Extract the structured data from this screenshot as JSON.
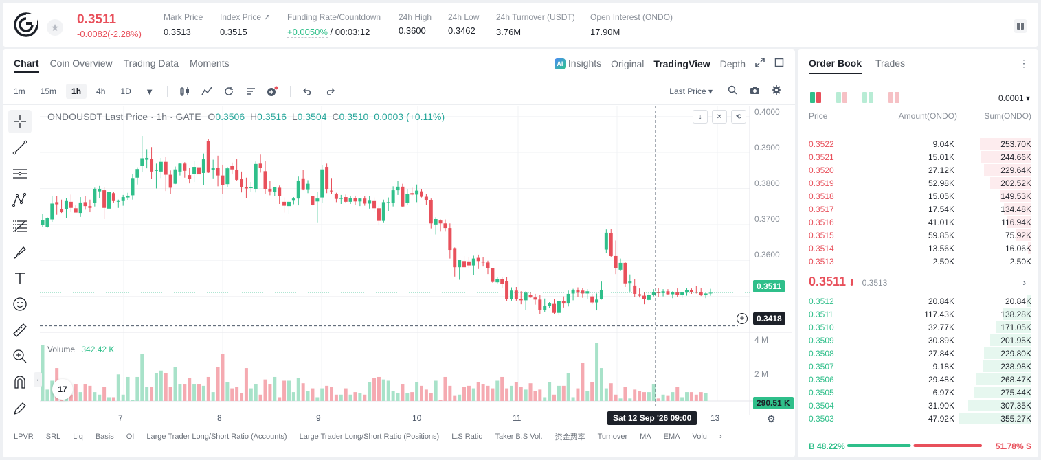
{
  "header": {
    "last_price": "0.3511",
    "price_change": "-0.0082(-2.28%)",
    "stats": [
      {
        "label": "Mark Price",
        "value": "0.3513"
      },
      {
        "label": "Index Price ↗",
        "value": "0.3515"
      },
      {
        "label": "Funding Rate/Countdown",
        "value": "+0.0050%",
        "value2": " / 00:03:12"
      },
      {
        "label": "24h High",
        "value": "0.3600"
      },
      {
        "label": "24h Low",
        "value": "0.3462"
      },
      {
        "label": "24h Turnover (USDT)",
        "value": "3.76M"
      },
      {
        "label": "Open Interest (ONDO)",
        "value": "17.90M"
      }
    ]
  },
  "chart_tabs": [
    "Chart",
    "Coin Overview",
    "Trading Data",
    "Moments"
  ],
  "view_tabs": {
    "insights": "Insights",
    "original": "Original",
    "tradingview": "TradingView",
    "depth": "Depth",
    "ai_badge": "AI"
  },
  "timeframes": [
    "1m",
    "15m",
    "1h",
    "4h",
    "1D"
  ],
  "price_source": "Last Price ▾",
  "legend": {
    "symbol": "ONDOUSDT Last Price · 1h · GATE",
    "o_label": "O",
    "o": "0.3506",
    "h_label": "H",
    "h": "0.3516",
    "l_label": "L",
    "l": "0.3504",
    "c_label": "C",
    "c": "0.3510",
    "change": "0.0003 (+0.11%)"
  },
  "volume_legend": {
    "label": "Volume",
    "value": "342.42 K"
  },
  "y_ticks": [
    "0.4000",
    "0.3900",
    "0.3800",
    "0.3700",
    "0.3600"
  ],
  "vol_ticks": [
    "4 M",
    "2 M"
  ],
  "current_price_tag": "0.3511",
  "crosshair_price_tag": "0.3418",
  "volume_tag": "290.51 K",
  "time_tag": "Sat 12 Sep '26   09:00",
  "x_ticks": [
    "7",
    "8",
    "9",
    "10",
    "11",
    "13"
  ],
  "tv_logo": "17",
  "indicators": [
    "LPVR",
    "SRL",
    "Liq",
    "Basis",
    "OI",
    "Large Trader Long/Short Ratio (Accounts)",
    "Large Trader Long/Short Ratio (Positions)",
    "L.S Ratio",
    "Taker B.S Vol.",
    "资金费率",
    "Turnover",
    "MA",
    "EMA",
    "Volu"
  ],
  "colors": {
    "up": "#2fbf8a",
    "down": "#e8505b"
  },
  "chart_data": {
    "type": "candlestick",
    "x_labels": [
      "7",
      "8",
      "9",
      "10",
      "11",
      "12",
      "13"
    ],
    "ylim": [
      0.3418,
      0.4
    ],
    "last_price": 0.3511,
    "candles": [
      [
        0.3698,
        0.3729,
        0.3693,
        0.3712
      ],
      [
        0.3693,
        0.372,
        0.3691,
        0.3718
      ],
      [
        0.3714,
        0.3779,
        0.3707,
        0.3758
      ],
      [
        0.3762,
        0.3779,
        0.3727,
        0.3756
      ],
      [
        0.3743,
        0.3769,
        0.3732,
        0.3734
      ],
      [
        0.3743,
        0.3773,
        0.3717,
        0.3765
      ],
      [
        0.3763,
        0.3783,
        0.3734,
        0.3746
      ],
      [
        0.3745,
        0.3753,
        0.3734,
        0.3733
      ],
      [
        0.3732,
        0.3776,
        0.3721,
        0.3761
      ],
      [
        0.3762,
        0.3778,
        0.3741,
        0.3751
      ],
      [
        0.3751,
        0.3769,
        0.3734,
        0.3746
      ],
      [
        0.3759,
        0.3802,
        0.375,
        0.3798
      ],
      [
        0.3792,
        0.3807,
        0.3774,
        0.3799
      ],
      [
        0.3795,
        0.3804,
        0.3715,
        0.3746
      ],
      [
        0.3744,
        0.3795,
        0.3735,
        0.3791
      ],
      [
        0.3787,
        0.379,
        0.3761,
        0.3765
      ],
      [
        0.3765,
        0.3769,
        0.3746,
        0.3765
      ],
      [
        0.3765,
        0.3782,
        0.3752,
        0.3776
      ],
      [
        0.3775,
        0.3788,
        0.3767,
        0.378
      ],
      [
        0.3781,
        0.3841,
        0.3769,
        0.3829
      ],
      [
        0.383,
        0.3859,
        0.3811,
        0.3854
      ],
      [
        0.3862,
        0.3946,
        0.3846,
        0.3884
      ],
      [
        0.388,
        0.3909,
        0.3856,
        0.3885
      ],
      [
        0.3883,
        0.3915,
        0.3826,
        0.3847
      ],
      [
        0.3849,
        0.3869,
        0.38,
        0.3851
      ],
      [
        0.3847,
        0.3885,
        0.3829,
        0.3874
      ],
      [
        0.3874,
        0.3887,
        0.3793,
        0.3838
      ],
      [
        0.3838,
        0.385,
        0.3784,
        0.3802
      ],
      [
        0.3813,
        0.3861,
        0.3812,
        0.3853
      ],
      [
        0.3847,
        0.387,
        0.3836,
        0.3869
      ],
      [
        0.3869,
        0.3873,
        0.383,
        0.3849
      ],
      [
        0.3837,
        0.3858,
        0.3814,
        0.3827
      ],
      [
        0.384,
        0.3876,
        0.3818,
        0.386
      ],
      [
        0.3859,
        0.3865,
        0.3827,
        0.3839
      ],
      [
        0.3843,
        0.3897,
        0.381,
        0.3881
      ],
      [
        0.3931,
        0.3937,
        0.3843,
        0.3844
      ],
      [
        0.3851,
        0.388,
        0.3828,
        0.3858
      ],
      [
        0.3857,
        0.3891,
        0.3806,
        0.3836
      ],
      [
        0.3836,
        0.3866,
        0.3785,
        0.381
      ],
      [
        0.3812,
        0.386,
        0.3804,
        0.3856
      ],
      [
        0.3862,
        0.3872,
        0.3839,
        0.3853
      ],
      [
        0.3851,
        0.3881,
        0.3822,
        0.3824
      ],
      [
        0.3826,
        0.3847,
        0.3789,
        0.3803
      ],
      [
        0.3803,
        0.383,
        0.3773,
        0.38
      ],
      [
        0.3801,
        0.3818,
        0.379,
        0.3803
      ],
      [
        0.3798,
        0.3875,
        0.3789,
        0.3868
      ],
      [
        0.3869,
        0.3894,
        0.3844,
        0.3858
      ],
      [
        0.3848,
        0.3876,
        0.3785,
        0.3799
      ],
      [
        0.3799,
        0.3821,
        0.3781,
        0.3792
      ],
      [
        0.3791,
        0.3803,
        0.3779,
        0.3804
      ],
      [
        0.3802,
        0.3808,
        0.3757,
        0.3778
      ],
      [
        0.3763,
        0.3775,
        0.3733,
        0.3752
      ],
      [
        0.3751,
        0.3768,
        0.3728,
        0.3763
      ],
      [
        0.3766,
        0.3776,
        0.3756,
        0.3772
      ],
      [
        0.3772,
        0.3833,
        0.3753,
        0.3822
      ],
      [
        0.3828,
        0.3852,
        0.3795,
        0.3796
      ],
      [
        0.3796,
        0.3823,
        0.3787,
        0.3813
      ],
      [
        0.3778,
        0.3779,
        0.3753,
        0.3755
      ],
      [
        0.3764,
        0.379,
        0.3704,
        0.3772
      ],
      [
        0.3775,
        0.3864,
        0.3759,
        0.3853
      ],
      [
        0.386,
        0.3869,
        0.3787,
        0.3797
      ],
      [
        0.3794,
        0.3829,
        0.3784,
        0.3792
      ],
      [
        0.3784,
        0.3788,
        0.3762,
        0.3771
      ],
      [
        0.3771,
        0.3782,
        0.3757,
        0.3774
      ],
      [
        0.3776,
        0.3783,
        0.376,
        0.3763
      ],
      [
        0.3763,
        0.378,
        0.3757,
        0.3773
      ],
      [
        0.3773,
        0.378,
        0.3755,
        0.3764
      ],
      [
        0.3764,
        0.3774,
        0.3751,
        0.3772
      ],
      [
        0.3772,
        0.3779,
        0.3752,
        0.3758
      ],
      [
        0.3758,
        0.3779,
        0.3744,
        0.3766
      ],
      [
        0.3765,
        0.3775,
        0.3734,
        0.3745
      ],
      [
        0.3745,
        0.3752,
        0.3699,
        0.371
      ],
      [
        0.371,
        0.3769,
        0.3704,
        0.3762
      ],
      [
        0.3762,
        0.3775,
        0.3737,
        0.3762
      ],
      [
        0.376,
        0.3806,
        0.375,
        0.3795
      ],
      [
        0.3795,
        0.382,
        0.3782,
        0.3805
      ],
      [
        0.3805,
        0.3813,
        0.3749,
        0.375
      ],
      [
        0.3759,
        0.3798,
        0.3755,
        0.3784
      ],
      [
        0.3787,
        0.3802,
        0.3781,
        0.3783
      ],
      [
        0.3783,
        0.3811,
        0.3762,
        0.3794
      ],
      [
        0.3792,
        0.3798,
        0.3775,
        0.3777
      ],
      [
        0.3777,
        0.3784,
        0.3754,
        0.3767
      ],
      [
        0.3767,
        0.3772,
        0.3689,
        0.3703
      ],
      [
        0.37,
        0.372,
        0.3672,
        0.3715
      ],
      [
        0.3711,
        0.3714,
        0.368,
        0.3703
      ],
      [
        0.3703,
        0.3714,
        0.368,
        0.369
      ],
      [
        0.369,
        0.3703,
        0.3605,
        0.3629
      ],
      [
        0.3634,
        0.3636,
        0.3555,
        0.3581
      ],
      [
        0.3581,
        0.3602,
        0.3546,
        0.3601
      ],
      [
        0.3598,
        0.3612,
        0.358,
        0.3581
      ],
      [
        0.3597,
        0.361,
        0.3579,
        0.3586
      ],
      [
        0.3586,
        0.3613,
        0.356,
        0.3605
      ],
      [
        0.3607,
        0.3616,
        0.3576,
        0.3598
      ],
      [
        0.3596,
        0.3609,
        0.3583,
        0.3594
      ],
      [
        0.3594,
        0.3599,
        0.3562,
        0.3578
      ],
      [
        0.3578,
        0.3579,
        0.3538,
        0.354
      ],
      [
        0.3539,
        0.3553,
        0.3536,
        0.3547
      ],
      [
        0.3547,
        0.3553,
        0.3524,
        0.3535
      ],
      [
        0.3543,
        0.3554,
        0.3486,
        0.3493
      ],
      [
        0.3493,
        0.3525,
        0.3488,
        0.3516
      ],
      [
        0.3516,
        0.3526,
        0.3488,
        0.3492
      ],
      [
        0.3492,
        0.3514,
        0.3478,
        0.3489
      ],
      [
        0.3489,
        0.3514,
        0.3463,
        0.351
      ],
      [
        0.3505,
        0.3511,
        0.3496,
        0.3497
      ],
      [
        0.3497,
        0.3507,
        0.3477,
        0.3491
      ],
      [
        0.3491,
        0.3504,
        0.3451,
        0.3462
      ],
      [
        0.3462,
        0.3494,
        0.3456,
        0.3474
      ],
      [
        0.3473,
        0.3484,
        0.3468,
        0.3481
      ],
      [
        0.3479,
        0.3492,
        0.3451,
        0.3454
      ],
      [
        0.3454,
        0.3488,
        0.3448,
        0.3486
      ],
      [
        0.3486,
        0.35,
        0.3469,
        0.348
      ],
      [
        0.348,
        0.3516,
        0.3472,
        0.3507
      ],
      [
        0.3508,
        0.3521,
        0.3489,
        0.3517
      ],
      [
        0.3517,
        0.3525,
        0.3499,
        0.351
      ],
      [
        0.3516,
        0.3523,
        0.3496,
        0.3508
      ],
      [
        0.3508,
        0.352,
        0.3492,
        0.3514
      ],
      [
        0.35,
        0.3507,
        0.3478,
        0.3483
      ],
      [
        0.3483,
        0.3508,
        0.3461,
        0.3491
      ],
      [
        0.3492,
        0.3541,
        0.3491,
        0.3518
      ],
      [
        0.363,
        0.3686,
        0.362,
        0.3677
      ],
      [
        0.3676,
        0.3688,
        0.3609,
        0.3612
      ],
      [
        0.3612,
        0.3655,
        0.3562,
        0.3579
      ],
      [
        0.3574,
        0.3605,
        0.3571,
        0.3593
      ],
      [
        0.3593,
        0.3596,
        0.3526,
        0.3536
      ],
      [
        0.3537,
        0.3561,
        0.3513,
        0.3543
      ],
      [
        0.353,
        0.3548,
        0.3499,
        0.3507
      ],
      [
        0.3506,
        0.3522,
        0.3497,
        0.3502
      ],
      [
        0.3502,
        0.3511,
        0.3478,
        0.3492
      ],
      [
        0.349,
        0.351,
        0.3486,
        0.3504
      ],
      [
        0.3504,
        0.352,
        0.35,
        0.3511
      ],
      [
        0.3511,
        0.3523,
        0.3499,
        0.3509
      ],
      [
        0.3509,
        0.352,
        0.35,
        0.3514
      ],
      [
        0.3514,
        0.352,
        0.3504,
        0.3506
      ],
      [
        0.3506,
        0.3514,
        0.3495,
        0.3511
      ],
      [
        0.3511,
        0.3522,
        0.3499,
        0.3504
      ],
      [
        0.3504,
        0.3512,
        0.3496,
        0.3511
      ],
      [
        0.3511,
        0.3524,
        0.3502,
        0.3517
      ],
      [
        0.3517,
        0.3522,
        0.3507,
        0.3512
      ],
      [
        0.3512,
        0.3529,
        0.3508,
        0.3511
      ],
      [
        0.3511,
        0.3524,
        0.3501,
        0.3503
      ],
      [
        0.3503,
        0.3512,
        0.3495,
        0.3508
      ],
      [
        0.3508,
        0.3521,
        0.3502,
        0.351
      ]
    ],
    "volumes": [
      4.4,
      0.9,
      1.6,
      2.6,
      0.9,
      0.2,
      0.5,
      1.3,
      0.7,
      1.3,
      1.2,
      0.7,
      0.5,
      1.1,
      0.3,
      0.3,
      2.1,
      0.5,
      1.9,
      0.1,
      1.9,
      3.7,
      1.1,
      1.1,
      2.2,
      2.4,
      2.2,
      1.1,
      2.7,
      1.3,
      1.3,
      1.8,
      1.3,
      1.3,
      1.2,
      1.9,
      0.7,
      2.7,
      3.7,
      1.5,
      1.0,
      1.1,
      0.6,
      2.6,
      1.0,
      1.3,
      0.5,
      1.7,
      1.3,
      1.9,
      0.3,
      1.6,
      1.6,
      0.7,
      1.8,
      1.4,
      0.8,
      1.0,
      0.3,
      1.0,
      1.2,
      1.1,
      0.5,
      0.5,
      1.0,
      0.5,
      0.7,
      0.6,
      0.5,
      1.5,
      1.8,
      1.9,
      1.7,
      1.6,
      0.8,
      0.6,
      1.3,
      0.6,
      0.7,
      1.5,
      1.2,
      0.9,
      0.6,
      1.6,
      0.1,
      1.9,
      1.2,
      0.4,
      0.5,
      1.1,
      1.2,
      1.0,
      1.5,
      1.3,
      1.2,
      1.0,
      1.6,
      1.9,
      1.0,
      1.2,
      1.5,
      1.1,
      0.9,
      1.4,
      0.8,
      0.9,
      0.3,
      1.5,
      0.5,
      1.2,
      1.2,
      2.2,
      0.3,
      1.0,
      3.0,
      0.8,
      1.5,
      4.6,
      2.6,
      1.0,
      1.4,
      0.5,
      0.2,
      1.1,
      0.2,
      0.9,
      0.8,
      0.7,
      0.7,
      1.3,
      0.2,
      0.5,
      0.4,
      0.7,
      1.1,
      0.3,
      0.7,
      0.7,
      0.5,
      0.7,
      0.6
    ],
    "vol_ylim": [
      0,
      4.6
    ],
    "vol_unit": "M"
  },
  "orderbook": {
    "tabs": [
      "Order Book",
      "Trades"
    ],
    "precision": "0.0001 ▾",
    "columns": [
      "Price",
      "Amount(ONDO)",
      "Sum(ONDO)"
    ],
    "asks": [
      {
        "price": "0.3522",
        "amount": "9.04K",
        "sum": "253.70K",
        "depth": 0.71
      },
      {
        "price": "0.3521",
        "amount": "15.01K",
        "sum": "244.66K",
        "depth": 0.69
      },
      {
        "price": "0.3520",
        "amount": "27.12K",
        "sum": "229.64K",
        "depth": 0.65
      },
      {
        "price": "0.3519",
        "amount": "52.98K",
        "sum": "202.52K",
        "depth": 0.57
      },
      {
        "price": "0.3518",
        "amount": "15.05K",
        "sum": "149.53K",
        "depth": 0.42
      },
      {
        "price": "0.3517",
        "amount": "17.54K",
        "sum": "134.48K",
        "depth": 0.38
      },
      {
        "price": "0.3516",
        "amount": "41.01K",
        "sum": "116.94K",
        "depth": 0.33
      },
      {
        "price": "0.3515",
        "amount": "59.85K",
        "sum": "75.92K",
        "depth": 0.21
      },
      {
        "price": "0.3514",
        "amount": "13.56K",
        "sum": "16.06K",
        "depth": 0.05
      },
      {
        "price": "0.3513",
        "amount": "2.50K",
        "sum": "2.50K",
        "depth": 0.01
      }
    ],
    "mid_price": "0.3511",
    "mid_arrow": "⬇",
    "mid_mark": "0.3513",
    "bids": [
      {
        "price": "0.3512",
        "amount": "20.84K",
        "sum": "20.84K",
        "depth": 0.06
      },
      {
        "price": "0.3511",
        "amount": "117.43K",
        "sum": "138.28K",
        "depth": 0.39
      },
      {
        "price": "0.3510",
        "amount": "32.77K",
        "sum": "171.05K",
        "depth": 0.48
      },
      {
        "price": "0.3509",
        "amount": "30.89K",
        "sum": "201.95K",
        "depth": 0.57
      },
      {
        "price": "0.3508",
        "amount": "27.84K",
        "sum": "229.80K",
        "depth": 0.65
      },
      {
        "price": "0.3507",
        "amount": "9.18K",
        "sum": "238.98K",
        "depth": 0.67
      },
      {
        "price": "0.3506",
        "amount": "29.48K",
        "sum": "268.47K",
        "depth": 0.76
      },
      {
        "price": "0.3505",
        "amount": "6.97K",
        "sum": "275.44K",
        "depth": 0.78
      },
      {
        "price": "0.3504",
        "amount": "31.90K",
        "sum": "307.35K",
        "depth": 0.87
      },
      {
        "price": "0.3503",
        "amount": "47.92K",
        "sum": "355.27K",
        "depth": 1.0
      }
    ],
    "buy_label": "B 48.22%",
    "sell_label": "51.78% S",
    "buy_ratio": 0.4822
  }
}
